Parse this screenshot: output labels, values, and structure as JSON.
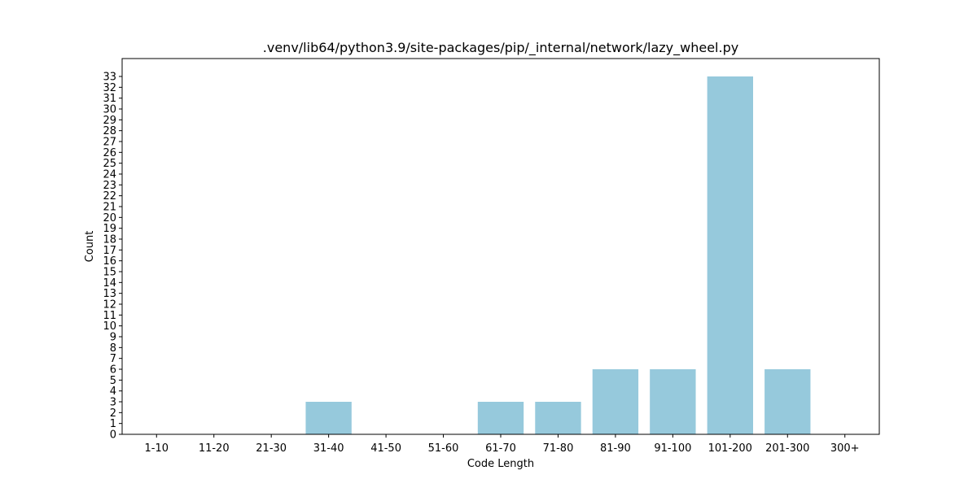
{
  "chart_data": {
    "type": "bar",
    "title": ".venv/lib64/python3.9/site-packages/pip/_internal/network/lazy_wheel.py",
    "xlabel": "Code Length",
    "ylabel": "Count",
    "categories": [
      "1-10",
      "11-20",
      "21-30",
      "31-40",
      "41-50",
      "51-60",
      "61-70",
      "71-80",
      "81-90",
      "91-100",
      "101-200",
      "201-300",
      "300+"
    ],
    "values": [
      0,
      0,
      0,
      3,
      0,
      0,
      3,
      3,
      6,
      6,
      33,
      6,
      0
    ],
    "ylim": [
      0,
      34.65
    ],
    "yticks": [
      0,
      1,
      2,
      3,
      4,
      5,
      6,
      7,
      8,
      9,
      10,
      11,
      12,
      13,
      14,
      15,
      16,
      17,
      18,
      19,
      20,
      21,
      22,
      23,
      24,
      25,
      26,
      27,
      28,
      29,
      30,
      31,
      32,
      33
    ],
    "bar_color": "#96c9dc",
    "grid": false,
    "legend": "none"
  }
}
